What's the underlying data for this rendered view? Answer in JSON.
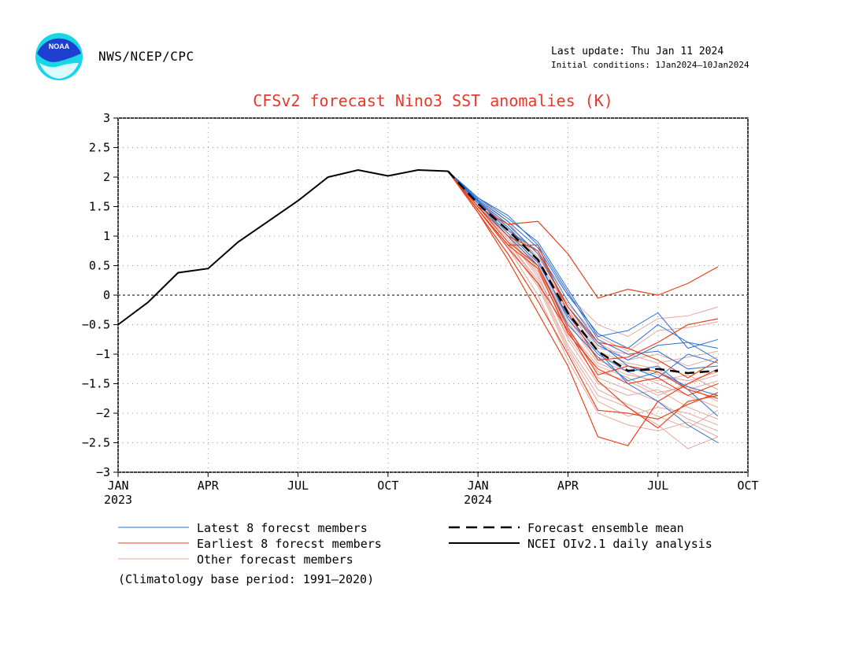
{
  "header": {
    "agency": "NWS/NCEP/CPC",
    "last_update": "Last update: Thu Jan 11 2024",
    "initial_conditions": "Initial conditions: 1Jan2024—10Jan2024",
    "logo_text": "NOAA"
  },
  "colors": {
    "title": "#e8382a",
    "latest_members": "#2a6fd6",
    "earliest_members": "#e8431e",
    "other_members": "#e6a89e",
    "analysis": "#000000",
    "ensemble_mean": "#000000",
    "logo_blue": "#1f3fd0",
    "logo_cyan": "#19d6e6"
  },
  "legend": {
    "latest": "Latest 8 forecst members",
    "earliest": "Earliest 8 forecst members",
    "other": "Other forecast members",
    "mean": "Forecast ensemble mean",
    "analysis": "NCEI OIv2.1 daily analysis",
    "climatology": "(Climatology base period: 1991—2020)"
  },
  "chart_data": {
    "type": "line",
    "title": "CFSv2 forecast Nino3 SST anomalies (K)",
    "xlabel": "",
    "ylabel": "",
    "ylim": [
      -3,
      3
    ],
    "xlim": [
      0,
      21
    ],
    "grid": true,
    "zero_line": true,
    "x_ticks": [
      {
        "x": 0,
        "label": "JAN",
        "year": "2023"
      },
      {
        "x": 3,
        "label": "APR",
        "year": ""
      },
      {
        "x": 6,
        "label": "JUL",
        "year": ""
      },
      {
        "x": 9,
        "label": "OCT",
        "year": ""
      },
      {
        "x": 12,
        "label": "JAN",
        "year": "2024"
      },
      {
        "x": 15,
        "label": "APR",
        "year": ""
      },
      {
        "x": 18,
        "label": "JUL",
        "year": ""
      },
      {
        "x": 21,
        "label": "OCT",
        "year": ""
      }
    ],
    "y_ticks": [
      3,
      2.5,
      2,
      1.5,
      1,
      0.5,
      0,
      -0.5,
      -1,
      -1.5,
      -2,
      -2.5,
      -3
    ],
    "analysis": {
      "name": "NCEI OIv2.1 daily analysis",
      "x": [
        0,
        1,
        2,
        3,
        4,
        5,
        6,
        7,
        8,
        9,
        10,
        11
      ],
      "y": [
        -0.5,
        -0.12,
        0.38,
        0.45,
        0.9,
        1.25,
        1.6,
        2.0,
        2.12,
        2.02,
        2.12,
        2.1
      ]
    },
    "ensemble_mean": {
      "name": "Forecast ensemble mean",
      "x": [
        11,
        12,
        13,
        14,
        15,
        16,
        17,
        18,
        19,
        20
      ],
      "y": [
        2.1,
        1.55,
        1.1,
        0.6,
        -0.3,
        -0.95,
        -1.28,
        -1.25,
        -1.32,
        -1.28
      ]
    },
    "members_latest": [
      [
        2.1,
        1.65,
        1.3,
        0.9,
        0.1,
        -0.7,
        -0.6,
        -0.3,
        -0.9,
        -0.75
      ],
      [
        2.1,
        1.6,
        1.2,
        0.7,
        -0.2,
        -0.85,
        -1.1,
        -0.85,
        -0.8,
        -1.1
      ],
      [
        2.1,
        1.58,
        1.15,
        0.6,
        -0.4,
        -1.0,
        -1.3,
        -1.2,
        -1.6,
        -2.05
      ],
      [
        2.1,
        1.55,
        1.05,
        0.55,
        -0.35,
        -0.95,
        -1.5,
        -1.8,
        -2.2,
        -2.5
      ],
      [
        2.1,
        1.62,
        1.25,
        0.8,
        0.0,
        -0.65,
        -0.9,
        -0.5,
        -0.8,
        -0.9
      ],
      [
        2.1,
        1.6,
        1.1,
        0.75,
        -0.1,
        -0.8,
        -1.2,
        -1.4,
        -1.0,
        -1.15
      ],
      [
        2.1,
        1.55,
        1.0,
        0.5,
        -0.5,
        -1.05,
        -1.45,
        -1.3,
        -1.55,
        -1.7
      ],
      [
        2.1,
        1.65,
        1.35,
        0.85,
        0.05,
        -0.75,
        -1.0,
        -0.95,
        -1.25,
        -1.2
      ]
    ],
    "members_earliest": [
      [
        2.1,
        1.5,
        1.2,
        1.25,
        0.7,
        -0.05,
        0.1,
        0.0,
        0.2,
        0.48
      ],
      [
        2.1,
        1.45,
        0.85,
        0.85,
        -0.3,
        -1.1,
        -1.05,
        -0.8,
        -0.5,
        -0.4
      ],
      [
        2.1,
        1.4,
        0.6,
        -0.3,
        -1.2,
        -2.4,
        -2.55,
        -1.8,
        -1.5,
        -1.25
      ],
      [
        2.1,
        1.45,
        0.8,
        0.2,
        -0.6,
        -1.45,
        -1.9,
        -2.25,
        -1.8,
        -1.7
      ],
      [
        2.1,
        1.5,
        0.9,
        0.5,
        -0.55,
        -1.35,
        -1.2,
        -1.3,
        -1.6,
        -1.75
      ],
      [
        2.1,
        1.4,
        0.7,
        -0.1,
        -1.0,
        -1.95,
        -2.0,
        -2.1,
        -1.85,
        -1.65
      ],
      [
        2.1,
        1.5,
        1.0,
        0.75,
        -0.2,
        -0.8,
        -0.9,
        -1.1,
        -1.4,
        -1.1
      ],
      [
        2.1,
        1.45,
        0.85,
        0.45,
        -0.65,
        -1.25,
        -1.5,
        -1.4,
        -1.7,
        -1.5
      ]
    ],
    "members_other": [
      [
        2.1,
        1.6,
        1.1,
        0.5,
        -0.4,
        -1.1,
        -1.3,
        -1.5,
        -1.7,
        -1.9
      ],
      [
        2.1,
        1.55,
        1.0,
        0.3,
        -0.7,
        -1.4,
        -1.6,
        -1.8,
        -2.1,
        -2.3
      ],
      [
        2.1,
        1.5,
        0.9,
        0.2,
        -0.9,
        -1.7,
        -1.9,
        -2.2,
        -2.6,
        -2.4
      ],
      [
        2.1,
        1.6,
        1.2,
        0.7,
        0.0,
        -0.5,
        -0.7,
        -0.4,
        -0.35,
        -0.2
      ],
      [
        2.1,
        1.65,
        1.25,
        0.6,
        -0.2,
        -0.9,
        -1.0,
        -1.15,
        -1.05,
        -0.95
      ],
      [
        2.1,
        1.5,
        0.95,
        0.4,
        -0.6,
        -1.2,
        -1.4,
        -1.65,
        -1.55,
        -1.8
      ],
      [
        2.1,
        1.45,
        0.8,
        0.0,
        -1.1,
        -2.0,
        -2.2,
        -2.3,
        -2.15,
        -2.4
      ],
      [
        2.1,
        1.6,
        1.15,
        0.65,
        -0.15,
        -0.7,
        -0.95,
        -0.6,
        -0.55,
        -0.45
      ],
      [
        2.1,
        1.55,
        1.05,
        0.45,
        -0.5,
        -1.05,
        -1.2,
        -1.35,
        -1.45,
        -1.3
      ],
      [
        2.1,
        1.5,
        1.0,
        0.35,
        -0.75,
        -1.5,
        -1.7,
        -1.6,
        -1.9,
        -2.1
      ],
      [
        2.1,
        1.6,
        1.2,
        0.55,
        -0.3,
        -0.8,
        -1.1,
        -1.0,
        -1.2,
        -1.05
      ],
      [
        2.1,
        1.45,
        0.85,
        0.15,
        -0.95,
        -1.8,
        -2.05,
        -1.9,
        -2.0,
        -2.2
      ],
      [
        2.1,
        1.55,
        1.1,
        0.5,
        -0.45,
        -1.15,
        -1.35,
        -1.45,
        -1.35,
        -1.6
      ],
      [
        2.1,
        1.5,
        0.9,
        0.25,
        -0.85,
        -1.6,
        -1.85,
        -2.05,
        -2.25,
        -1.95
      ],
      [
        2.1,
        1.6,
        1.15,
        0.6,
        -0.25,
        -0.95,
        -1.15,
        -1.25,
        -1.6,
        -1.45
      ],
      [
        2.1,
        1.5,
        1.0,
        0.4,
        -0.55,
        -1.3,
        -1.45,
        -1.7,
        -1.5,
        -1.35
      ]
    ]
  }
}
